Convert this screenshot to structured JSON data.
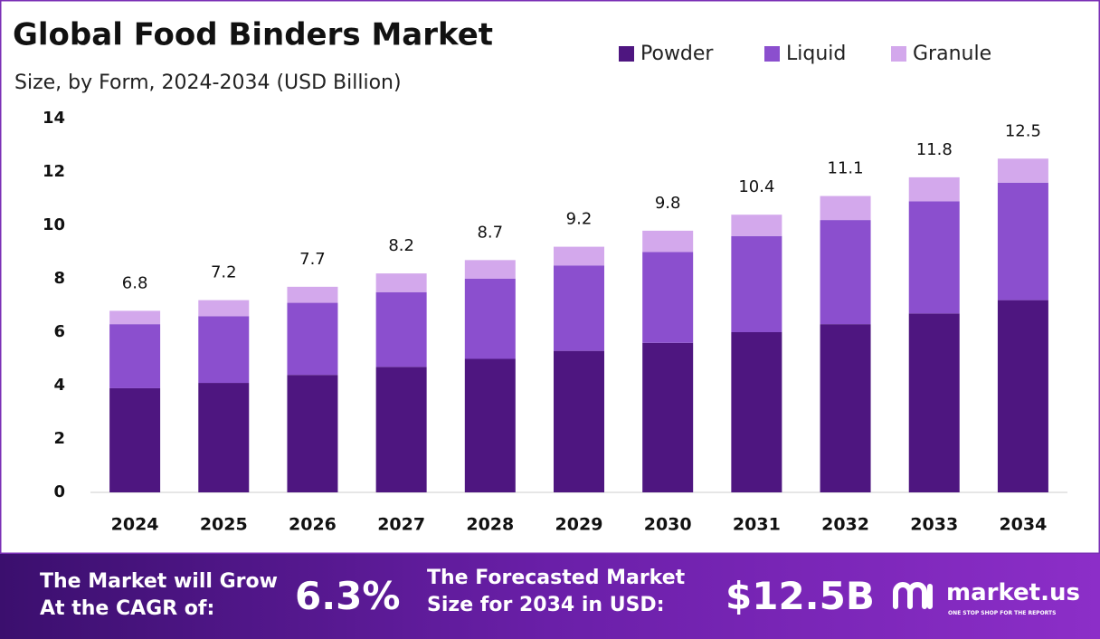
{
  "chart_data": {
    "type": "stacked-bar",
    "title": "Global Food Binders Market",
    "subtitle": "Size, by Form, 2024-2034 (USD Billion)",
    "categories": [
      "2024",
      "2025",
      "2026",
      "2027",
      "2028",
      "2029",
      "2030",
      "2031",
      "2032",
      "2033",
      "2034"
    ],
    "series": [
      {
        "name": "Powder",
        "color": "#4e1680",
        "values": [
          3.9,
          4.1,
          4.4,
          4.7,
          5.0,
          5.3,
          5.6,
          6.0,
          6.3,
          6.7,
          7.2
        ]
      },
      {
        "name": "Liquid",
        "color": "#8b4fce",
        "values": [
          2.4,
          2.5,
          2.7,
          2.8,
          3.0,
          3.2,
          3.4,
          3.6,
          3.9,
          4.2,
          4.4
        ]
      },
      {
        "name": "Granule",
        "color": "#d3a8ec",
        "values": [
          0.5,
          0.6,
          0.6,
          0.7,
          0.7,
          0.7,
          0.8,
          0.8,
          0.9,
          0.9,
          0.9
        ]
      }
    ],
    "totals": [
      6.8,
      7.2,
      7.7,
      8.2,
      8.7,
      9.2,
      9.8,
      10.4,
      11.1,
      11.8,
      12.5
    ],
    "ylim": [
      0,
      14
    ],
    "yticks": [
      0,
      2,
      4,
      6,
      8,
      10,
      12,
      14
    ],
    "grid": false,
    "legend": "top-right"
  },
  "footer": {
    "cagr_text": [
      "The Market will Grow",
      "At the CAGR of:"
    ],
    "cagr_value": "6.3%",
    "forecast_text": [
      "The Forecasted Market",
      "Size for 2034 in USD:"
    ],
    "forecast_value": "$12.5B",
    "brand": "market.us",
    "tagline": "ONE STOP SHOP FOR THE REPORTS"
  }
}
